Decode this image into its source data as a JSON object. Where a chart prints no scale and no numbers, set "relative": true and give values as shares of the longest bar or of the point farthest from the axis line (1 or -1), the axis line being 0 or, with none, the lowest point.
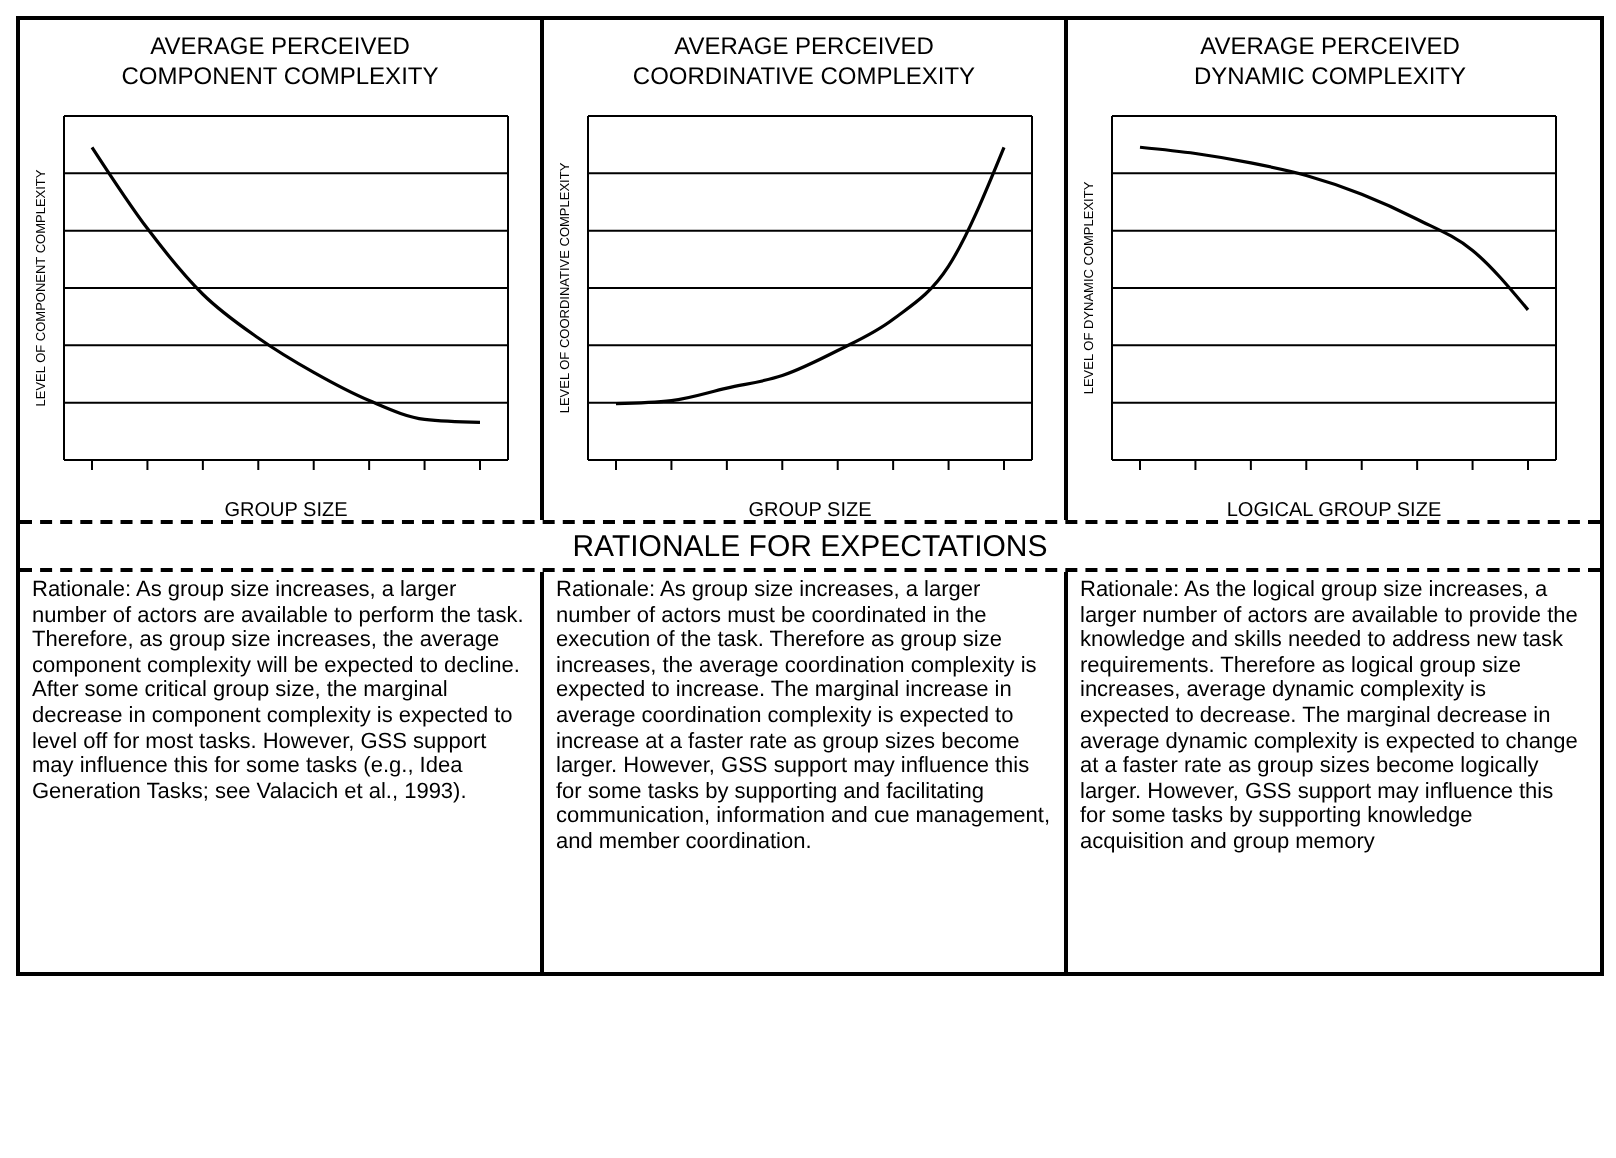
{
  "chart_data": [
    {
      "type": "line",
      "title": "AVERAGE PERCEIVED\nCOMPONENT COMPLEXITY",
      "xlabel": "GROUP SIZE",
      "ylabel": "LEVEL OF COMPONENT COMPLEXITY",
      "relative": true,
      "grid": "y",
      "categories": [
        null,
        null,
        null,
        null,
        null,
        null,
        null,
        null
      ],
      "series": [
        {
          "color": "#000000",
          "values": [
            1,
            0.74,
            0.53,
            0.39,
            0.28,
            0.19,
            0.13,
            0.12
          ]
        }
      ]
    },
    {
      "type": "line",
      "title": "AVERAGE PERCEIVED\nCOORDINATIVE COMPLEXITY",
      "xlabel": "GROUP SIZE",
      "ylabel": "LEVEL OF COORDINATIVE COMPLEXITY",
      "relative": true,
      "grid": "y",
      "categories": [
        null,
        null,
        null,
        null,
        null,
        null,
        null,
        null
      ],
      "series": [
        {
          "color": "#000000",
          "values": [
            0.18,
            0.19,
            0.23,
            0.27,
            0.35,
            0.45,
            0.62,
            1
          ]
        }
      ]
    },
    {
      "type": "line",
      "title": "AVERAGE PERCEIVED\nDYNAMIC COMPLEXITY",
      "xlabel": "LOGICAL GROUP SIZE",
      "ylabel": "LEVEL OF DYNAMIC COMPLEXITY",
      "relative": true,
      "grid": "y",
      "categories": [
        null,
        null,
        null,
        null,
        null,
        null,
        null,
        null
      ],
      "series": [
        {
          "color": "#000000",
          "values": [
            1,
            0.98,
            0.95,
            0.91,
            0.85,
            0.77,
            0.67,
            0.48
          ]
        }
      ]
    },
    {
      "type": "other",
      "title": "RATIONALE FOR EXPECTATIONS",
      "annotations": [
        "Rationale: As group size increases, a larger number of actors are available to perform the task.  Therefore, as group size increases, the average component complexity will be expected to decline.  After some critical group size, the marginal decrease in component complexity is expected to level off for most tasks.  However, GSS support may influence this for some tasks (e.g., Idea Generation Tasks; see Valacich et al., 1993).",
        "Rationale: As group size increases, a larger number of actors must be coordinated in the execution of the task.  Therefore as group size increases, the average coordination complexity is expected to increase. The marginal increase in average coordination complexity is expected to increase at a faster rate as group sizes become larger. However, GSS support may influence this for some tasks by supporting and facilitating communication, information and cue management, and member coordination.",
        "Rationale: As the logical group size increases, a larger number of actors are available to provide the knowledge and skills needed to address new task requirements. Therefore as logical group size increases, average dynamic complexity is expected to decrease. The marginal decrease in average dynamic complexity is expected to change at a faster rate as group sizes become logically larger.  However, GSS support may influence this for some tasks by supporting knowledge acquisition and group memory"
      ]
    }
  ]
}
